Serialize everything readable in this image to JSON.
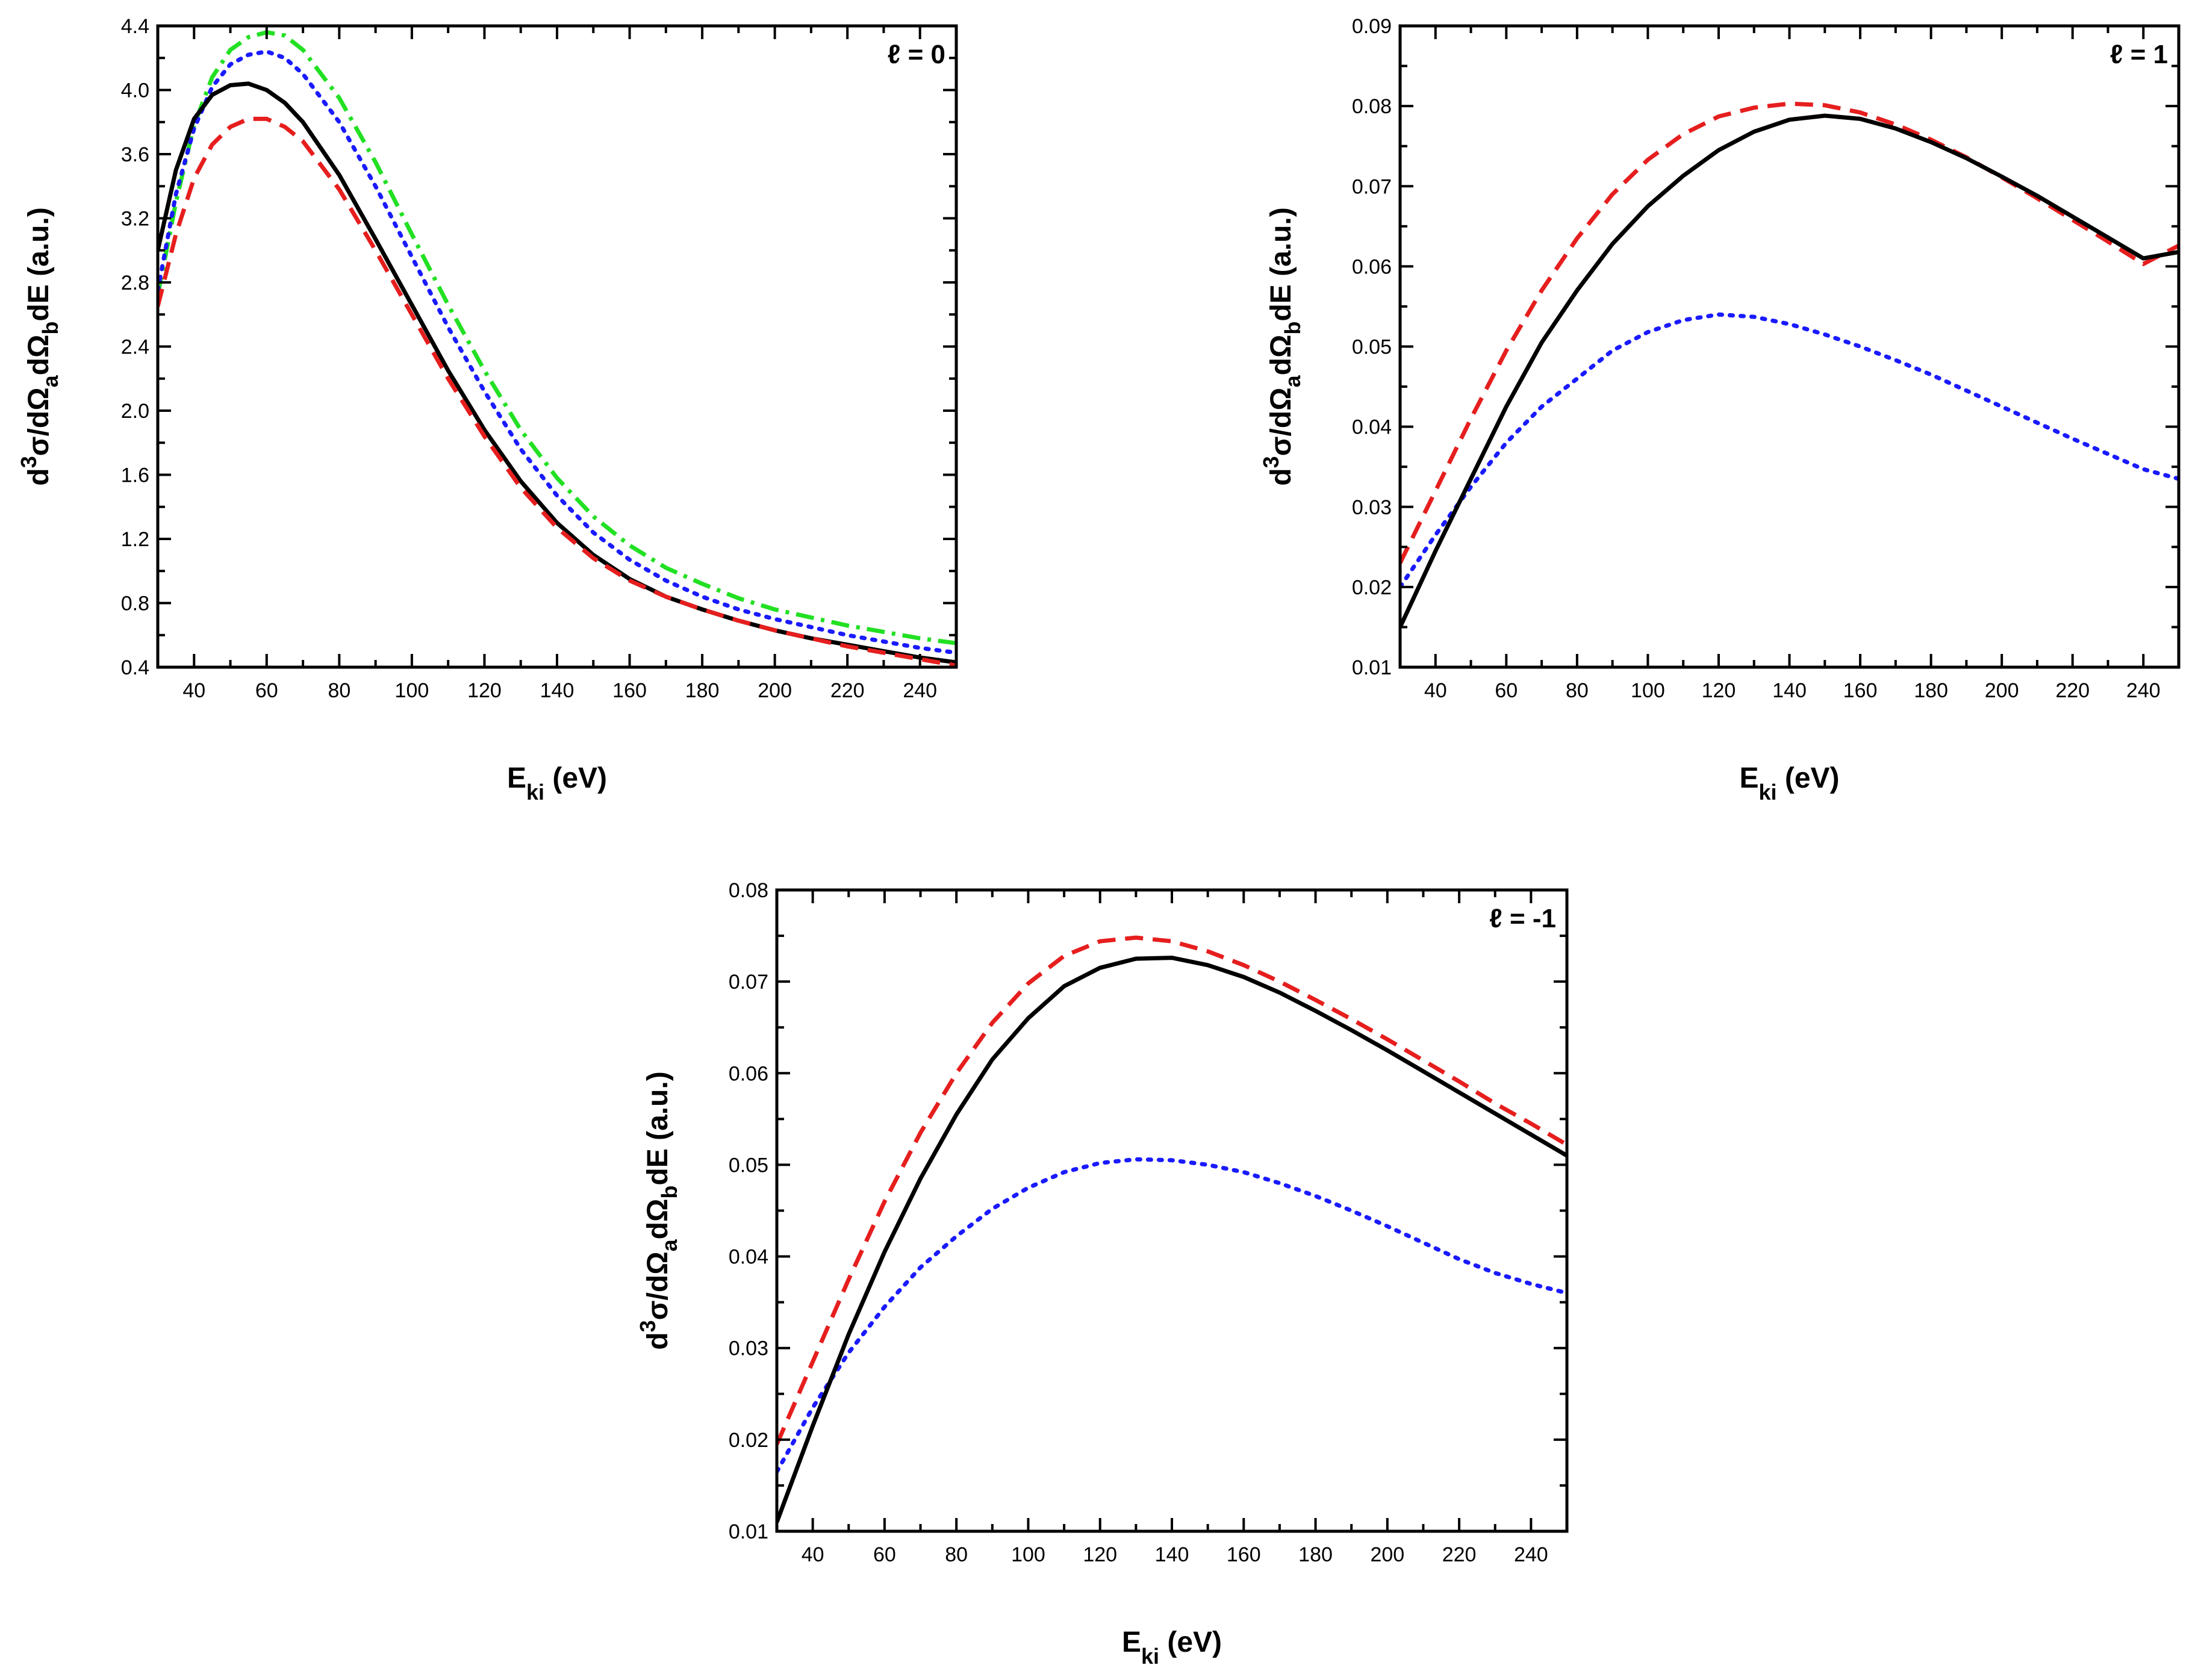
{
  "colors": {
    "black": "#000000",
    "red": "#e61e1e",
    "blue": "#1a1aff",
    "green": "#22e022"
  },
  "chart_data": [
    {
      "type": "line",
      "title": "",
      "panel_label": "ℓ = 0",
      "xlabel": {
        "main": "E",
        "sub": "ki",
        "rest": " (eV)"
      },
      "ylabel": {
        "pre": "d",
        "sup": "3",
        "mid": "σ/dΩ",
        "sub1": "a",
        "mid2": "dΩ",
        "sub2": "b",
        "post": "dE (a.u.)"
      },
      "xlim": [
        30,
        250
      ],
      "ylim": [
        0.4,
        4.4
      ],
      "xticks": [
        40,
        60,
        80,
        100,
        120,
        140,
        160,
        180,
        200,
        220,
        240
      ],
      "yticks": [
        "0.4",
        "0.8",
        "1.2",
        "1.6",
        "2.0",
        "2.4",
        "2.8",
        "3.2",
        "3.6",
        "4.0",
        "4.4"
      ],
      "series": [
        {
          "name": "green-dash-dot",
          "color": "#22e022",
          "style": "dashdot",
          "x": [
            30,
            35,
            40,
            45,
            50,
            55,
            60,
            65,
            70,
            80,
            90,
            100,
            110,
            120,
            130,
            140,
            150,
            160,
            170,
            180,
            190,
            200,
            210,
            220,
            230,
            240,
            250
          ],
          "y": [
            2.72,
            3.3,
            3.78,
            4.08,
            4.25,
            4.33,
            4.36,
            4.34,
            4.25,
            3.95,
            3.55,
            3.1,
            2.66,
            2.25,
            1.88,
            1.58,
            1.34,
            1.16,
            1.02,
            0.92,
            0.83,
            0.76,
            0.71,
            0.66,
            0.62,
            0.58,
            0.55
          ]
        },
        {
          "name": "blue-dotted",
          "color": "#1a1aff",
          "style": "dotted",
          "x": [
            30,
            35,
            40,
            45,
            50,
            55,
            60,
            65,
            70,
            80,
            90,
            100,
            110,
            120,
            130,
            140,
            150,
            160,
            170,
            180,
            190,
            200,
            210,
            220,
            230,
            240,
            250
          ],
          "y": [
            2.75,
            3.35,
            3.76,
            4.02,
            4.16,
            4.22,
            4.24,
            4.2,
            4.1,
            3.8,
            3.4,
            2.96,
            2.52,
            2.12,
            1.76,
            1.47,
            1.24,
            1.07,
            0.94,
            0.84,
            0.76,
            0.7,
            0.65,
            0.6,
            0.56,
            0.52,
            0.49
          ]
        },
        {
          "name": "black-solid",
          "color": "#000000",
          "style": "solid",
          "x": [
            30,
            35,
            40,
            45,
            50,
            55,
            60,
            65,
            70,
            80,
            90,
            100,
            110,
            120,
            130,
            140,
            150,
            160,
            170,
            180,
            190,
            200,
            210,
            220,
            230,
            240,
            250
          ],
          "y": [
            3.0,
            3.5,
            3.82,
            3.97,
            4.03,
            4.04,
            4.0,
            3.92,
            3.8,
            3.47,
            3.07,
            2.66,
            2.25,
            1.88,
            1.56,
            1.3,
            1.1,
            0.95,
            0.84,
            0.76,
            0.69,
            0.63,
            0.58,
            0.54,
            0.5,
            0.46,
            0.43
          ]
        },
        {
          "name": "red-dashed",
          "color": "#e61e1e",
          "style": "dashed",
          "x": [
            30,
            35,
            40,
            45,
            50,
            55,
            60,
            65,
            70,
            80,
            90,
            100,
            110,
            120,
            130,
            140,
            150,
            160,
            170,
            180,
            190,
            200,
            210,
            220,
            230,
            240,
            250
          ],
          "y": [
            2.65,
            3.1,
            3.45,
            3.66,
            3.77,
            3.82,
            3.82,
            3.77,
            3.68,
            3.38,
            3.0,
            2.6,
            2.2,
            1.84,
            1.52,
            1.27,
            1.08,
            0.94,
            0.84,
            0.76,
            0.69,
            0.63,
            0.58,
            0.53,
            0.49,
            0.45,
            0.41
          ]
        }
      ]
    },
    {
      "type": "line",
      "title": "",
      "panel_label": "ℓ = 1",
      "xlabel": {
        "main": "E",
        "sub": "ki",
        "rest": " (eV)"
      },
      "ylabel": {
        "pre": "d",
        "sup": "3",
        "mid": "σ/dΩ",
        "sub1": "a",
        "mid2": "dΩ",
        "sub2": "b",
        "post": "dE (a.u.)"
      },
      "xlim": [
        30,
        250
      ],
      "ylim": [
        0.01,
        0.09
      ],
      "xticks": [
        40,
        60,
        80,
        100,
        120,
        140,
        160,
        180,
        200,
        220,
        240
      ],
      "yticks": [
        "0.01",
        "0.02",
        "0.03",
        "0.04",
        "0.05",
        "0.06",
        "0.07",
        "0.08",
        "0.09"
      ],
      "series": [
        {
          "name": "blue-dotted",
          "color": "#1a1aff",
          "style": "dotted",
          "x": [
            30,
            40,
            50,
            60,
            70,
            80,
            90,
            100,
            110,
            120,
            130,
            140,
            150,
            160,
            170,
            180,
            190,
            200,
            210,
            220,
            230,
            240,
            250
          ],
          "y": [
            0.02,
            0.0265,
            0.0325,
            0.038,
            0.0425,
            0.046,
            0.0495,
            0.0518,
            0.0533,
            0.054,
            0.0537,
            0.0528,
            0.0515,
            0.05,
            0.0483,
            0.0465,
            0.0445,
            0.0425,
            0.0405,
            0.0385,
            0.0366,
            0.0347,
            0.0335
          ]
        },
        {
          "name": "red-dashed",
          "color": "#e61e1e",
          "style": "dashed",
          "x": [
            30,
            40,
            50,
            60,
            70,
            80,
            90,
            100,
            110,
            120,
            130,
            140,
            150,
            160,
            170,
            180,
            190,
            200,
            210,
            220,
            230,
            240,
            250
          ],
          "y": [
            0.023,
            0.032,
            0.041,
            0.0495,
            0.057,
            0.0635,
            0.069,
            0.0733,
            0.0765,
            0.0787,
            0.0798,
            0.0803,
            0.0801,
            0.0792,
            0.0777,
            0.0758,
            0.0736,
            0.0711,
            0.0685,
            0.0658,
            0.0631,
            0.0603,
            0.0626
          ]
        },
        {
          "name": "black-solid",
          "color": "#000000",
          "style": "solid",
          "x": [
            30,
            40,
            50,
            60,
            70,
            80,
            90,
            100,
            110,
            120,
            130,
            140,
            150,
            160,
            170,
            180,
            190,
            200,
            210,
            220,
            230,
            240,
            250
          ],
          "y": [
            0.015,
            0.0245,
            0.0335,
            0.0425,
            0.0505,
            0.057,
            0.0628,
            0.0675,
            0.0713,
            0.0745,
            0.0768,
            0.0783,
            0.0788,
            0.0784,
            0.0772,
            0.0755,
            0.0735,
            0.0712,
            0.0688,
            0.0662,
            0.0636,
            0.061,
            0.0618
          ]
        }
      ]
    },
    {
      "type": "line",
      "title": "",
      "panel_label": "ℓ = -1",
      "xlabel": {
        "main": "E",
        "sub": "ki",
        "rest": " (eV)"
      },
      "ylabel": {
        "pre": "d",
        "sup": "3",
        "mid": "σ/dΩ",
        "sub1": "a",
        "mid2": "dΩ",
        "sub2": "b",
        "post": "dE (a.u.)"
      },
      "xlim": [
        30,
        250
      ],
      "ylim": [
        0.01,
        0.08
      ],
      "xticks": [
        40,
        60,
        80,
        100,
        120,
        140,
        160,
        180,
        200,
        220,
        240
      ],
      "yticks": [
        "0.01",
        "0.02",
        "0.03",
        "0.04",
        "0.05",
        "0.06",
        "0.07",
        "0.08"
      ],
      "series": [
        {
          "name": "blue-dotted",
          "color": "#1a1aff",
          "style": "dotted",
          "x": [
            30,
            40,
            50,
            60,
            70,
            80,
            90,
            100,
            110,
            120,
            130,
            140,
            150,
            160,
            170,
            180,
            190,
            200,
            210,
            220,
            230,
            240,
            250
          ],
          "y": [
            0.0165,
            0.0235,
            0.0295,
            0.0345,
            0.0388,
            0.0422,
            0.0452,
            0.0475,
            0.0492,
            0.0502,
            0.0506,
            0.0505,
            0.05,
            0.0492,
            0.048,
            0.0466,
            0.045,
            0.0433,
            0.0415,
            0.0397,
            0.0382,
            0.037,
            0.036
          ]
        },
        {
          "name": "red-dashed",
          "color": "#e61e1e",
          "style": "dashed",
          "x": [
            30,
            40,
            50,
            60,
            70,
            80,
            90,
            100,
            110,
            120,
            130,
            140,
            150,
            160,
            170,
            180,
            190,
            200,
            210,
            220,
            230,
            240,
            250
          ],
          "y": [
            0.0195,
            0.0285,
            0.0375,
            0.046,
            0.0535,
            0.06,
            0.0655,
            0.0698,
            0.0728,
            0.0744,
            0.0748,
            0.0744,
            0.0733,
            0.0718,
            0.07,
            0.068,
            0.0659,
            0.0637,
            0.0614,
            0.0591,
            0.0567,
            0.0545,
            0.0522
          ]
        },
        {
          "name": "black-solid",
          "color": "#000000",
          "style": "solid",
          "x": [
            30,
            40,
            50,
            60,
            70,
            80,
            90,
            100,
            110,
            120,
            130,
            140,
            150,
            160,
            170,
            180,
            190,
            200,
            210,
            220,
            230,
            240,
            250
          ],
          "y": [
            0.011,
            0.0215,
            0.0315,
            0.0405,
            0.0485,
            0.0555,
            0.0615,
            0.066,
            0.0695,
            0.0715,
            0.0725,
            0.0726,
            0.0718,
            0.0705,
            0.0688,
            0.0668,
            0.0647,
            0.0625,
            0.0602,
            0.0579,
            0.0556,
            0.0533,
            0.051
          ]
        }
      ]
    }
  ]
}
